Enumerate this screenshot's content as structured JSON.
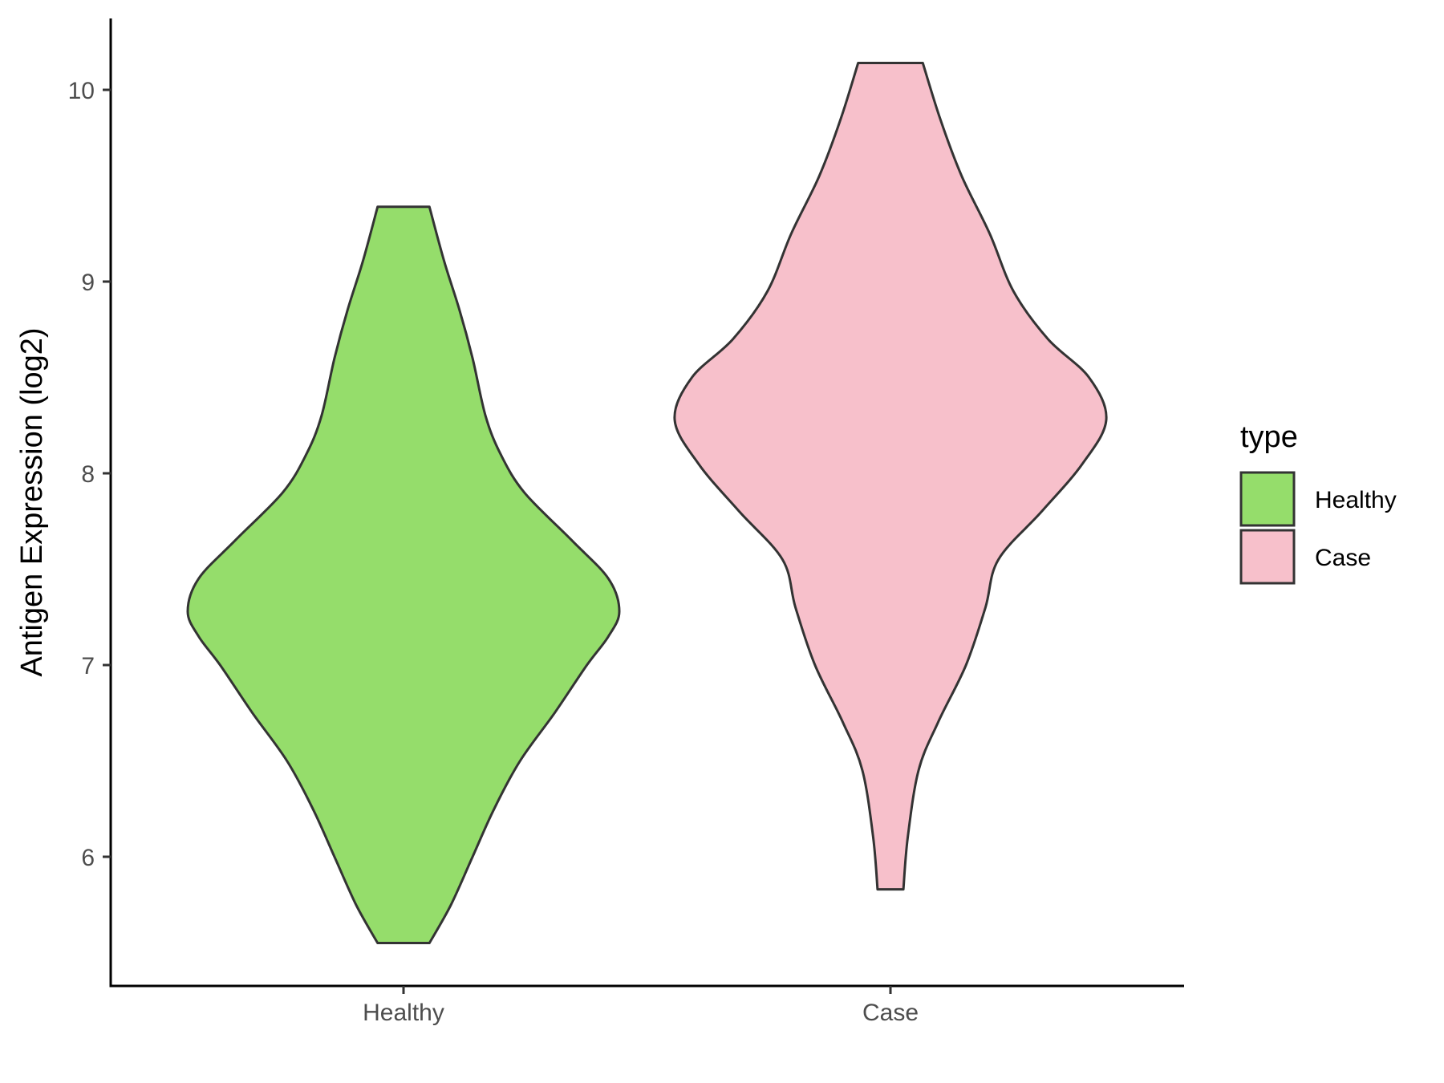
{
  "chart_data": {
    "type": "violin",
    "title": "",
    "xlabel": "",
    "ylabel": "Antigen Expression (log2)",
    "ylim": [
      5.35,
      10.4
    ],
    "yticks": [
      6,
      7,
      8,
      9,
      10
    ],
    "categories": [
      "Healthy",
      "Case"
    ],
    "grid": false,
    "legend": {
      "title": "type",
      "position": "right",
      "entries": [
        {
          "label": "Healthy",
          "color": "#95DD6B"
        },
        {
          "label": "Case",
          "color": "#F7C0CB"
        }
      ]
    },
    "series": [
      {
        "name": "Healthy",
        "color": "#95DD6B",
        "min": 5.55,
        "max": 9.39,
        "density_profile": [
          [
            5.55,
            0.12
          ],
          [
            5.75,
            0.22
          ],
          [
            6.0,
            0.32
          ],
          [
            6.25,
            0.42
          ],
          [
            6.5,
            0.54
          ],
          [
            6.75,
            0.7
          ],
          [
            7.0,
            0.85
          ],
          [
            7.15,
            0.95
          ],
          [
            7.28,
            1.0
          ],
          [
            7.45,
            0.95
          ],
          [
            7.65,
            0.78
          ],
          [
            7.9,
            0.56
          ],
          [
            8.1,
            0.45
          ],
          [
            8.3,
            0.38
          ],
          [
            8.6,
            0.32
          ],
          [
            8.85,
            0.26
          ],
          [
            9.1,
            0.19
          ],
          [
            9.39,
            0.12
          ]
        ]
      },
      {
        "name": "Case",
        "color": "#F7C0CB",
        "min": 5.83,
        "max": 10.14,
        "density_profile": [
          [
            5.83,
            0.06
          ],
          [
            6.1,
            0.08
          ],
          [
            6.45,
            0.13
          ],
          [
            6.7,
            0.22
          ],
          [
            7.0,
            0.35
          ],
          [
            7.3,
            0.44
          ],
          [
            7.55,
            0.5
          ],
          [
            7.8,
            0.7
          ],
          [
            8.05,
            0.89
          ],
          [
            8.28,
            1.0
          ],
          [
            8.5,
            0.92
          ],
          [
            8.7,
            0.73
          ],
          [
            8.95,
            0.57
          ],
          [
            9.25,
            0.46
          ],
          [
            9.55,
            0.33
          ],
          [
            9.85,
            0.23
          ],
          [
            10.14,
            0.15
          ]
        ]
      }
    ]
  }
}
